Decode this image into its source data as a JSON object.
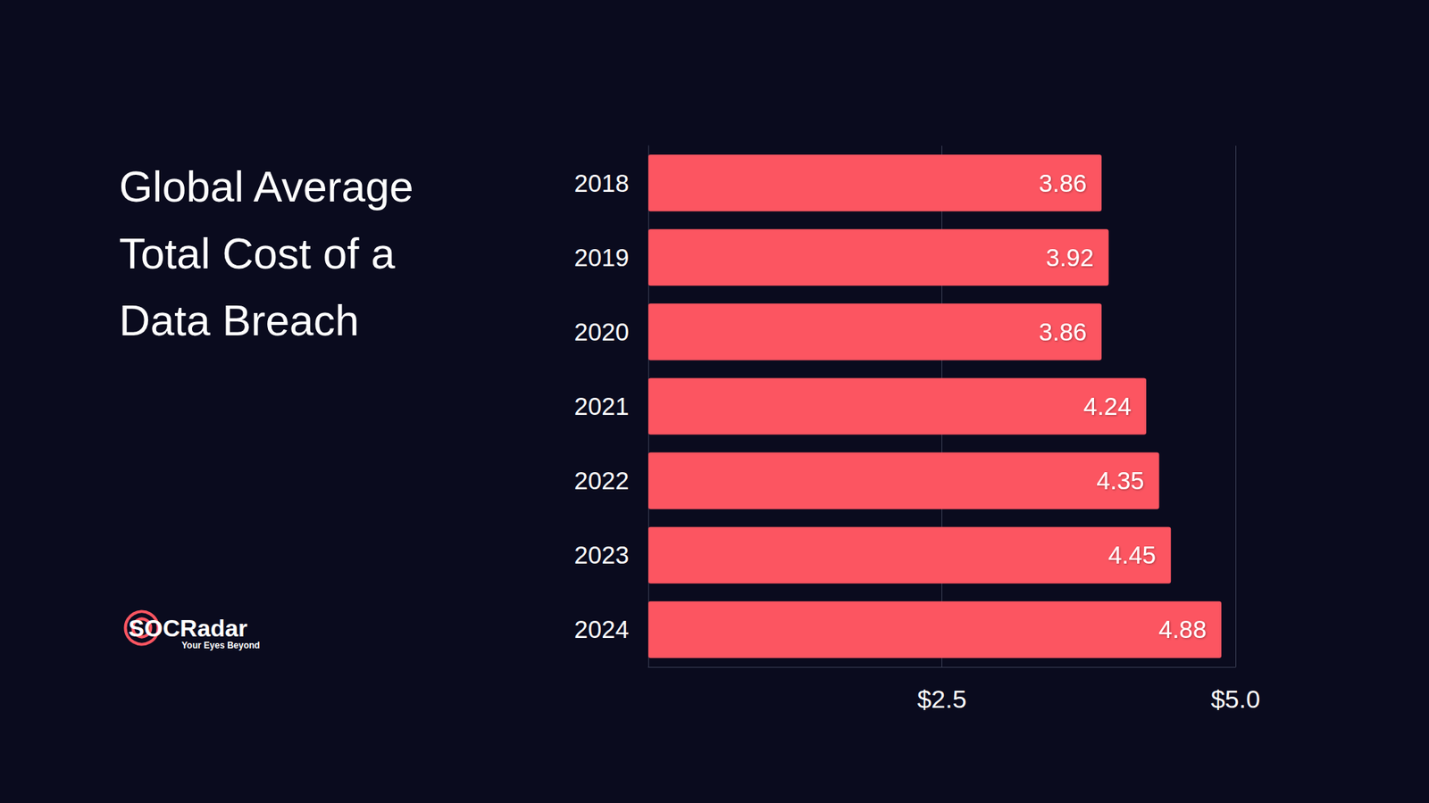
{
  "chart_data": {
    "type": "bar",
    "orientation": "horizontal",
    "title": "Global Average Total Cost of a Data Breach",
    "categories": [
      "2018",
      "2019",
      "2020",
      "2021",
      "2022",
      "2023",
      "2024"
    ],
    "values": [
      3.86,
      3.92,
      3.86,
      4.24,
      4.35,
      4.45,
      4.88
    ],
    "color": "#fc5561",
    "xlim": [
      0,
      5
    ],
    "xticks": [
      {
        "value": 2.5,
        "label": "$2.5"
      },
      {
        "value": 5,
        "label": "$5.0"
      }
    ],
    "grid": true,
    "data_labels": true,
    "annotations": [
      "SOCRadar",
      "Your Eyes Beyond"
    ]
  }
}
